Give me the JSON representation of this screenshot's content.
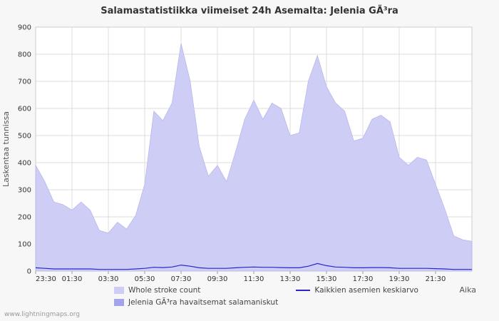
{
  "page": {
    "title": "Salamastatistiikka viimeiset 24h Asemalta: Jelenia GÃ³ra",
    "watermark": "www.lightningmaps.org"
  },
  "legend": {
    "items": [
      {
        "label": "Whole stroke count",
        "swatch_color": "#cdcdf5",
        "kind": "area"
      },
      {
        "label": "Kaikkien asemien keskiarvo",
        "swatch_color": "#2727cc",
        "kind": "line"
      },
      {
        "label": "Jelenia GÃ³ra havaitsemat salamaniskut",
        "swatch_color": "#a3a3ec",
        "kind": "area"
      }
    ]
  },
  "chart_data": {
    "type": "area",
    "title": "Salamastatistiikka viimeiset 24h Asemalta: Jelenia GÃ³ra",
    "xlabel": "Aika",
    "ylabel": "Laskentaa tunnissa",
    "ylim": [
      0,
      900
    ],
    "y_ticks": [
      0,
      100,
      200,
      300,
      400,
      500,
      600,
      700,
      800,
      900
    ],
    "grid": true,
    "legend_position": "bottom",
    "x_start": "23:30",
    "x_step_minutes": 30,
    "x_tick_labels": [
      "23:30",
      "01:30",
      "03:30",
      "05:30",
      "07:30",
      "09:30",
      "11:30",
      "13:30",
      "15:30",
      "17:30",
      "19:30",
      "21:30"
    ],
    "series": [
      {
        "name": "Whole stroke count",
        "type": "area",
        "color": "#cdcdf5",
        "values": [
          390,
          330,
          255,
          245,
          225,
          255,
          225,
          150,
          140,
          180,
          155,
          205,
          320,
          590,
          555,
          620,
          840,
          700,
          460,
          350,
          390,
          330,
          440,
          560,
          630,
          560,
          620,
          600,
          500,
          510,
          700,
          795,
          680,
          620,
          590,
          480,
          490,
          560,
          575,
          550,
          420,
          390,
          420,
          410,
          320,
          230,
          130,
          115,
          110
        ]
      },
      {
        "name": "Kaikkien asemien keskiarvo",
        "type": "line",
        "color": "#2727cc",
        "values": [
          12,
          10,
          8,
          8,
          8,
          8,
          8,
          6,
          6,
          6,
          6,
          8,
          10,
          14,
          13,
          15,
          22,
          18,
          12,
          10,
          10,
          10,
          12,
          14,
          15,
          14,
          14,
          13,
          12,
          12,
          18,
          28,
          20,
          15,
          14,
          12,
          12,
          13,
          13,
          12,
          10,
          10,
          10,
          10,
          9,
          8,
          6,
          6,
          6
        ]
      }
    ]
  }
}
